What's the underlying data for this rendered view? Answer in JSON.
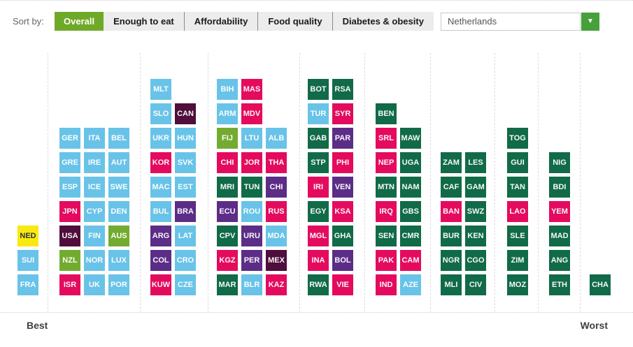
{
  "toolbar": {
    "sort_by_label": "Sort by:",
    "tabs": [
      {
        "label": "Overall",
        "active": true
      },
      {
        "label": "Enough to eat",
        "active": false
      },
      {
        "label": "Affordability",
        "active": false
      },
      {
        "label": "Food quality",
        "active": false
      },
      {
        "label": "Diabetes & obesity",
        "active": false
      }
    ]
  },
  "country_selector": {
    "value": "Netherlands",
    "icon": "chevron-down-icon",
    "button_color": "#46a03c"
  },
  "chart_data": {
    "type": "tile-histogram",
    "best_label": "Best",
    "worst_label": "Worst",
    "rows": 9,
    "highlighted_country": "NED",
    "palette": {
      "blue": "#69c3e8",
      "pink": "#e40b5e",
      "green": "#116a48",
      "purple": "#5c2d87",
      "wine": "#4f0e3b",
      "lime": "#73ab31",
      "yellow": "#f8e912"
    },
    "groups": [
      {
        "columns": [
          [
            {
              "code": "NED",
              "color": "yellow",
              "row": 6
            },
            {
              "code": "SUI",
              "color": "blue",
              "row": 7
            },
            {
              "code": "FRA",
              "color": "blue",
              "row": 8
            }
          ]
        ]
      },
      {
        "columns": [
          [
            {
              "code": "GER",
              "color": "blue",
              "row": 2
            },
            {
              "code": "GRE",
              "color": "blue",
              "row": 3
            },
            {
              "code": "ESP",
              "color": "blue",
              "row": 4
            },
            {
              "code": "JPN",
              "color": "pink",
              "row": 5
            },
            {
              "code": "USA",
              "color": "wine",
              "row": 6
            },
            {
              "code": "NZL",
              "color": "lime",
              "row": 7
            },
            {
              "code": "ISR",
              "color": "pink",
              "row": 8
            }
          ],
          [
            {
              "code": "ITA",
              "color": "blue",
              "row": 2
            },
            {
              "code": "IRE",
              "color": "blue",
              "row": 3
            },
            {
              "code": "ICE",
              "color": "blue",
              "row": 4
            },
            {
              "code": "CYP",
              "color": "blue",
              "row": 5
            },
            {
              "code": "FIN",
              "color": "blue",
              "row": 6
            },
            {
              "code": "NOR",
              "color": "blue",
              "row": 7
            },
            {
              "code": "UK",
              "color": "blue",
              "row": 8
            }
          ],
          [
            {
              "code": "BEL",
              "color": "blue",
              "row": 2
            },
            {
              "code": "AUT",
              "color": "blue",
              "row": 3
            },
            {
              "code": "SWE",
              "color": "blue",
              "row": 4
            },
            {
              "code": "DEN",
              "color": "blue",
              "row": 5
            },
            {
              "code": "AUS",
              "color": "lime",
              "row": 6
            },
            {
              "code": "LUX",
              "color": "blue",
              "row": 7
            },
            {
              "code": "POR",
              "color": "blue",
              "row": 8
            }
          ]
        ]
      },
      {
        "columns": [
          [
            {
              "code": "MLT",
              "color": "blue",
              "row": 0
            },
            {
              "code": "SLO",
              "color": "blue",
              "row": 1
            },
            {
              "code": "UKR",
              "color": "blue",
              "row": 2
            },
            {
              "code": "KOR",
              "color": "pink",
              "row": 3
            },
            {
              "code": "MAC",
              "color": "blue",
              "row": 4
            },
            {
              "code": "BUL",
              "color": "blue",
              "row": 5
            },
            {
              "code": "ARG",
              "color": "purple",
              "row": 6
            },
            {
              "code": "COL",
              "color": "purple",
              "row": 7
            },
            {
              "code": "KUW",
              "color": "pink",
              "row": 8
            }
          ],
          [
            {
              "code": "CAN",
              "color": "wine",
              "row": 1
            },
            {
              "code": "HUN",
              "color": "blue",
              "row": 2
            },
            {
              "code": "SVK",
              "color": "blue",
              "row": 3
            },
            {
              "code": "EST",
              "color": "blue",
              "row": 4
            },
            {
              "code": "BRA",
              "color": "purple",
              "row": 5
            },
            {
              "code": "LAT",
              "color": "blue",
              "row": 6
            },
            {
              "code": "CRO",
              "color": "blue",
              "row": 7
            },
            {
              "code": "CZE",
              "color": "blue",
              "row": 8
            }
          ]
        ]
      },
      {
        "columns": [
          [
            {
              "code": "BIH",
              "color": "blue",
              "row": 0
            },
            {
              "code": "ARM",
              "color": "blue",
              "row": 1
            },
            {
              "code": "FIJ",
              "color": "lime",
              "row": 2
            },
            {
              "code": "CHI",
              "color": "pink",
              "row": 3
            },
            {
              "code": "MRI",
              "color": "green",
              "row": 4
            },
            {
              "code": "ECU",
              "color": "purple",
              "row": 5
            },
            {
              "code": "CPV",
              "color": "green",
              "row": 6
            },
            {
              "code": "KGZ",
              "color": "pink",
              "row": 7
            },
            {
              "code": "MAR",
              "color": "green",
              "row": 8
            }
          ],
          [
            {
              "code": "MAS",
              "color": "pink",
              "row": 0
            },
            {
              "code": "MDV",
              "color": "pink",
              "row": 1
            },
            {
              "code": "LTU",
              "color": "blue",
              "row": 2
            },
            {
              "code": "JOR",
              "color": "pink",
              "row": 3
            },
            {
              "code": "TUN",
              "color": "green",
              "row": 4
            },
            {
              "code": "ROU",
              "color": "blue",
              "row": 5
            },
            {
              "code": "URU",
              "color": "purple",
              "row": 6
            },
            {
              "code": "PER",
              "color": "purple",
              "row": 7
            },
            {
              "code": "BLR",
              "color": "blue",
              "row": 8
            }
          ],
          [
            {
              "code": "ALB",
              "color": "blue",
              "row": 2
            },
            {
              "code": "THA",
              "color": "pink",
              "row": 3
            },
            {
              "code": "CHI",
              "color": "purple",
              "row": 4
            },
            {
              "code": "RUS",
              "color": "pink",
              "row": 5
            },
            {
              "code": "MDA",
              "color": "blue",
              "row": 6
            },
            {
              "code": "MEX",
              "color": "wine",
              "row": 7
            },
            {
              "code": "KAZ",
              "color": "pink",
              "row": 8
            }
          ]
        ]
      },
      {
        "columns": [
          [
            {
              "code": "BOT",
              "color": "green",
              "row": 0
            },
            {
              "code": "TUR",
              "color": "blue",
              "row": 1
            },
            {
              "code": "GAB",
              "color": "green",
              "row": 2
            },
            {
              "code": "STP",
              "color": "green",
              "row": 3
            },
            {
              "code": "IRI",
              "color": "pink",
              "row": 4
            },
            {
              "code": "EGY",
              "color": "green",
              "row": 5
            },
            {
              "code": "MGL",
              "color": "pink",
              "row": 6
            },
            {
              "code": "INA",
              "color": "pink",
              "row": 7
            },
            {
              "code": "RWA",
              "color": "green",
              "row": 8
            }
          ],
          [
            {
              "code": "RSA",
              "color": "green",
              "row": 0
            },
            {
              "code": "SYR",
              "color": "pink",
              "row": 1
            },
            {
              "code": "PAR",
              "color": "purple",
              "row": 2
            },
            {
              "code": "PHI",
              "color": "pink",
              "row": 3
            },
            {
              "code": "VEN",
              "color": "purple",
              "row": 4
            },
            {
              "code": "KSA",
              "color": "pink",
              "row": 5
            },
            {
              "code": "GHA",
              "color": "green",
              "row": 6
            },
            {
              "code": "BOL",
              "color": "purple",
              "row": 7
            },
            {
              "code": "VIE",
              "color": "pink",
              "row": 8
            }
          ]
        ]
      },
      {
        "columns": [
          [
            {
              "code": "BEN",
              "color": "green",
              "row": 1
            },
            {
              "code": "SRL",
              "color": "pink",
              "row": 2
            },
            {
              "code": "NEP",
              "color": "pink",
              "row": 3
            },
            {
              "code": "MTN",
              "color": "green",
              "row": 4
            },
            {
              "code": "IRQ",
              "color": "pink",
              "row": 5
            },
            {
              "code": "SEN",
              "color": "green",
              "row": 6
            },
            {
              "code": "PAK",
              "color": "pink",
              "row": 7
            },
            {
              "code": "IND",
              "color": "pink",
              "row": 8
            }
          ],
          [
            {
              "code": "MAW",
              "color": "green",
              "row": 2
            },
            {
              "code": "UGA",
              "color": "green",
              "row": 3
            },
            {
              "code": "NAM",
              "color": "green",
              "row": 4
            },
            {
              "code": "GBS",
              "color": "green",
              "row": 5
            },
            {
              "code": "CMR",
              "color": "green",
              "row": 6
            },
            {
              "code": "CAM",
              "color": "pink",
              "row": 7
            },
            {
              "code": "AZE",
              "color": "blue",
              "row": 8
            }
          ]
        ]
      },
      {
        "columns": [
          [
            {
              "code": "ZAM",
              "color": "green",
              "row": 3
            },
            {
              "code": "CAF",
              "color": "green",
              "row": 4
            },
            {
              "code": "BAN",
              "color": "pink",
              "row": 5
            },
            {
              "code": "BUR",
              "color": "green",
              "row": 6
            },
            {
              "code": "NGR",
              "color": "green",
              "row": 7
            },
            {
              "code": "MLI",
              "color": "green",
              "row": 8
            }
          ],
          [
            {
              "code": "LES",
              "color": "green",
              "row": 3
            },
            {
              "code": "GAM",
              "color": "green",
              "row": 4
            },
            {
              "code": "SWZ",
              "color": "green",
              "row": 5
            },
            {
              "code": "KEN",
              "color": "green",
              "row": 6
            },
            {
              "code": "CGO",
              "color": "green",
              "row": 7
            },
            {
              "code": "CIV",
              "color": "green",
              "row": 8
            }
          ]
        ]
      },
      {
        "columns": [
          [
            {
              "code": "TOG",
              "color": "green",
              "row": 2
            },
            {
              "code": "GUI",
              "color": "green",
              "row": 3
            },
            {
              "code": "TAN",
              "color": "green",
              "row": 4
            },
            {
              "code": "LAO",
              "color": "pink",
              "row": 5
            },
            {
              "code": "SLE",
              "color": "green",
              "row": 6
            },
            {
              "code": "ZIM",
              "color": "green",
              "row": 7
            },
            {
              "code": "MOZ",
              "color": "green",
              "row": 8
            }
          ]
        ]
      },
      {
        "columns": [
          [
            {
              "code": "NIG",
              "color": "green",
              "row": 3
            },
            {
              "code": "BDI",
              "color": "green",
              "row": 4
            },
            {
              "code": "YEM",
              "color": "pink",
              "row": 5
            },
            {
              "code": "MAD",
              "color": "green",
              "row": 6
            },
            {
              "code": "ANG",
              "color": "green",
              "row": 7
            },
            {
              "code": "ETH",
              "color": "green",
              "row": 8
            }
          ]
        ]
      },
      {
        "columns": [
          [
            {
              "code": "CHA",
              "color": "green",
              "row": 8
            }
          ]
        ]
      }
    ]
  }
}
